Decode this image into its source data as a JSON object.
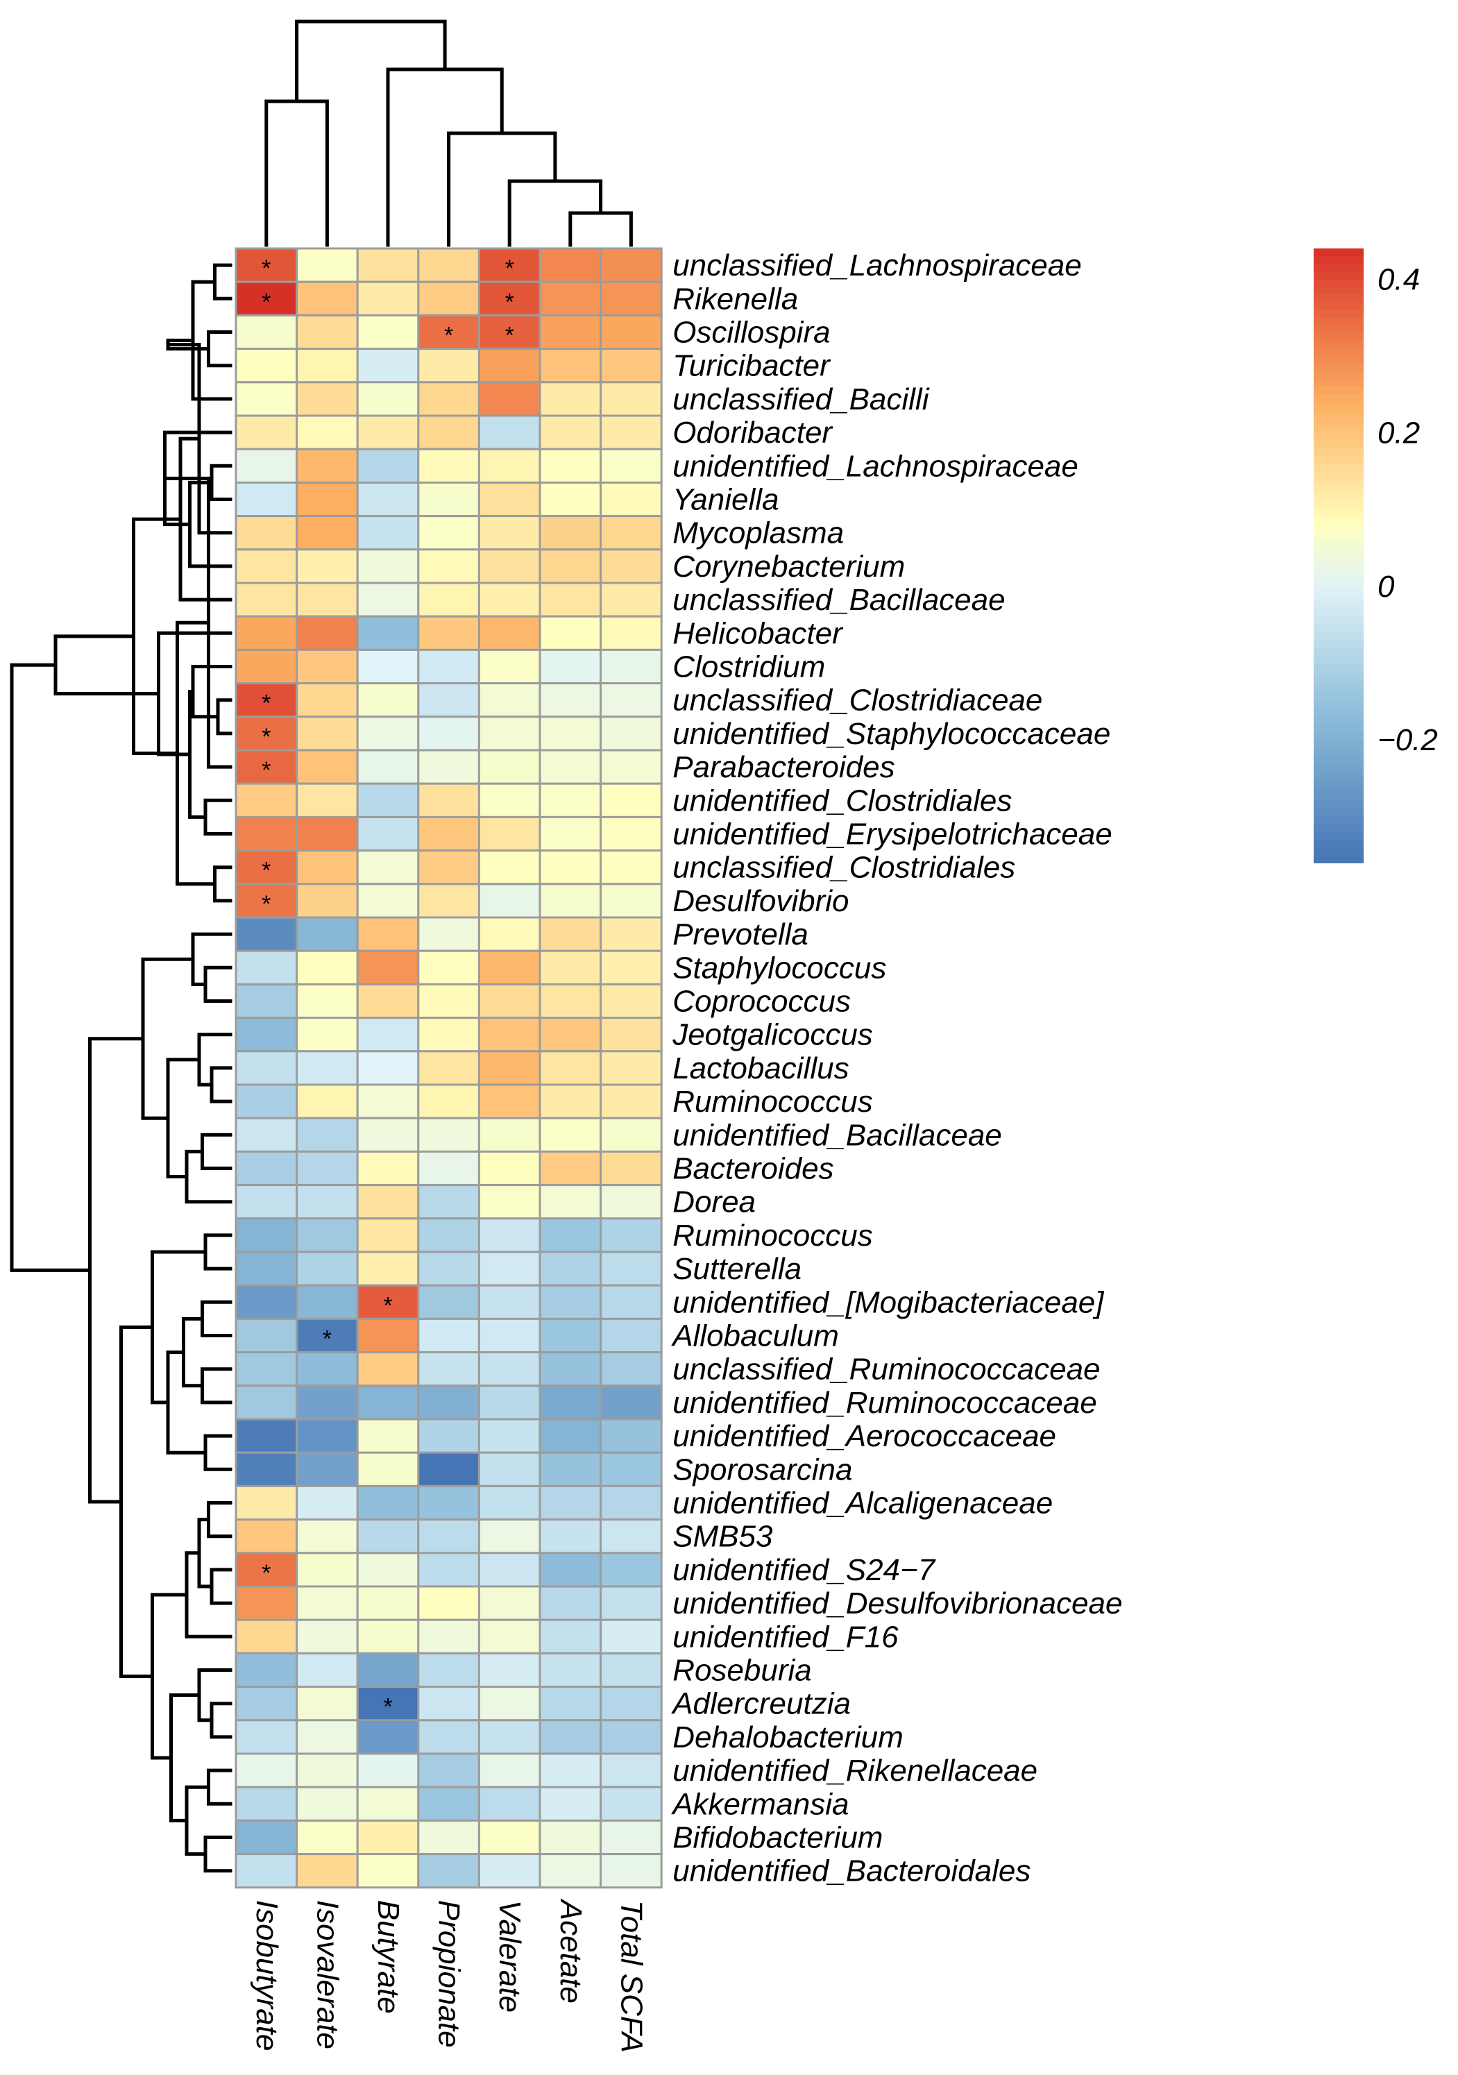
{
  "chart_data": {
    "type": "heatmap",
    "title": "",
    "columns": [
      "Isobutyrate",
      "Isovalerate",
      "Butyrate",
      "Propionate",
      "Valerate",
      "Acetate",
      "Total SCFA"
    ],
    "rows": [
      "unclassified_Lachnospiraceae",
      "Rikenella",
      "Oscillospira",
      "Turicibacter",
      "unclassified_Bacilli",
      "Odoribacter",
      "unidentified_Lachnospiraceae",
      "Yaniella",
      "Mycoplasma",
      "Corynebacterium",
      "unclassified_Bacillaceae",
      "Helicobacter",
      "Clostridium",
      "unclassified_Clostridiaceae",
      "unidentified_Staphylococcaceae",
      "Parabacteroides",
      "unidentified_Clostridiales",
      "unidentified_Erysipelotrichaceae",
      "unclassified_Clostridiales",
      "Desulfovibrio",
      "Prevotella",
      "Staphylococcus",
      "Coprococcus",
      "Jeotgalicoccus",
      "Lactobacillus",
      "Ruminococcus",
      "unidentified_Bacillaceae",
      "Bacteroides",
      "Dorea",
      "Ruminococcus",
      "Sutterella",
      "unidentified_[Mogibacteriaceae]",
      "Allobaculum",
      "unclassified_Ruminococcaceae",
      "unidentified_Ruminococcaceae",
      "unidentified_Aerococcaceae",
      "Sporosarcina",
      "unidentified_Alcaligenaceae",
      "SMB53",
      "unidentified_S24−7",
      "unidentified_Desulfovibrionaceae",
      "unidentified_F16",
      "Roseburia",
      "Adlercreutzia",
      "Dehalobacterium",
      "unidentified_Rikenellaceae",
      "Akkermansia",
      "Bifidobacterium",
      "unidentified_Bacteroidales"
    ],
    "values": [
      [
        0.38,
        0.07,
        0.14,
        0.16,
        0.38,
        0.3,
        0.29
      ],
      [
        0.44,
        0.2,
        0.12,
        0.18,
        0.38,
        0.28,
        0.28
      ],
      [
        0.06,
        0.15,
        0.07,
        0.34,
        0.36,
        0.26,
        0.25
      ],
      [
        0.08,
        0.1,
        -0.02,
        0.12,
        0.26,
        0.2,
        0.19
      ],
      [
        0.07,
        0.15,
        0.06,
        0.16,
        0.3,
        0.12,
        0.12
      ],
      [
        0.12,
        0.09,
        0.12,
        0.16,
        -0.06,
        0.12,
        0.12
      ],
      [
        0.02,
        0.22,
        -0.09,
        0.09,
        0.1,
        0.08,
        0.07
      ],
      [
        -0.03,
        0.24,
        -0.04,
        0.06,
        0.14,
        0.08,
        0.09
      ],
      [
        0.15,
        0.24,
        -0.05,
        0.07,
        0.12,
        0.17,
        0.16
      ],
      [
        0.13,
        0.11,
        0.04,
        0.09,
        0.14,
        0.16,
        0.15
      ],
      [
        0.13,
        0.13,
        0.03,
        0.1,
        0.11,
        0.13,
        0.12
      ],
      [
        0.25,
        0.31,
        -0.16,
        0.19,
        0.22,
        0.08,
        0.09
      ],
      [
        0.25,
        0.19,
        0.0,
        -0.03,
        0.07,
        0.01,
        0.02
      ],
      [
        0.39,
        0.16,
        0.06,
        -0.04,
        0.05,
        0.03,
        0.03
      ],
      [
        0.34,
        0.15,
        0.03,
        0.01,
        0.05,
        0.05,
        0.04
      ],
      [
        0.35,
        0.2,
        0.02,
        0.04,
        0.06,
        0.05,
        0.05
      ],
      [
        0.18,
        0.13,
        -0.08,
        0.14,
        0.07,
        0.07,
        0.08
      ],
      [
        0.31,
        0.31,
        -0.05,
        0.19,
        0.13,
        0.07,
        0.08
      ],
      [
        0.34,
        0.2,
        0.05,
        0.18,
        0.08,
        0.08,
        0.08
      ],
      [
        0.33,
        0.17,
        0.05,
        0.13,
        0.02,
        0.06,
        0.06
      ],
      [
        -0.3,
        -0.18,
        0.2,
        0.04,
        0.09,
        0.15,
        0.12
      ],
      [
        -0.06,
        0.08,
        0.28,
        0.08,
        0.22,
        0.12,
        0.11
      ],
      [
        -0.12,
        0.07,
        0.15,
        0.09,
        0.15,
        0.13,
        0.12
      ],
      [
        -0.17,
        0.07,
        -0.03,
        0.09,
        0.2,
        0.19,
        0.14
      ],
      [
        -0.06,
        -0.03,
        0.0,
        0.13,
        0.22,
        0.13,
        0.12
      ],
      [
        -0.11,
        0.1,
        0.05,
        0.1,
        0.2,
        0.12,
        0.12
      ],
      [
        -0.04,
        -0.09,
        0.04,
        0.04,
        0.06,
        0.07,
        0.06
      ],
      [
        -0.11,
        -0.09,
        0.09,
        0.02,
        0.08,
        0.18,
        0.15
      ],
      [
        -0.06,
        -0.06,
        0.14,
        -0.08,
        0.07,
        0.05,
        0.04
      ],
      [
        -0.19,
        -0.13,
        0.13,
        -0.1,
        -0.04,
        -0.14,
        -0.1
      ],
      [
        -0.19,
        -0.1,
        0.11,
        -0.08,
        -0.03,
        -0.1,
        -0.07
      ],
      [
        -0.26,
        -0.18,
        0.37,
        -0.13,
        -0.05,
        -0.12,
        -0.08
      ],
      [
        -0.13,
        -0.34,
        0.28,
        -0.03,
        -0.03,
        -0.14,
        -0.09
      ],
      [
        -0.13,
        -0.17,
        0.18,
        -0.05,
        -0.05,
        -0.15,
        -0.12
      ],
      [
        -0.13,
        -0.24,
        -0.19,
        -0.2,
        -0.08,
        -0.22,
        -0.24
      ],
      [
        -0.34,
        -0.28,
        0.06,
        -0.1,
        -0.05,
        -0.19,
        -0.15
      ],
      [
        -0.33,
        -0.24,
        0.06,
        -0.36,
        -0.06,
        -0.15,
        -0.14
      ],
      [
        0.12,
        -0.02,
        -0.16,
        -0.15,
        -0.06,
        -0.09,
        -0.09
      ],
      [
        0.19,
        0.05,
        -0.08,
        -0.07,
        0.03,
        -0.05,
        -0.04
      ],
      [
        0.33,
        0.06,
        0.04,
        -0.07,
        -0.04,
        -0.17,
        -0.14
      ],
      [
        0.28,
        0.05,
        0.06,
        0.08,
        0.05,
        -0.08,
        -0.06
      ],
      [
        0.16,
        0.04,
        0.06,
        0.04,
        0.05,
        -0.06,
        -0.02
      ],
      [
        -0.16,
        -0.03,
        -0.23,
        -0.07,
        -0.02,
        -0.05,
        -0.06
      ],
      [
        -0.12,
        0.05,
        -0.36,
        -0.04,
        0.03,
        -0.08,
        -0.09
      ],
      [
        -0.06,
        0.03,
        -0.26,
        -0.07,
        -0.05,
        -0.12,
        -0.11
      ],
      [
        0.02,
        0.04,
        0.01,
        -0.12,
        0.02,
        -0.02,
        -0.04
      ],
      [
        -0.08,
        0.04,
        0.05,
        -0.14,
        -0.07,
        -0.02,
        -0.05
      ],
      [
        -0.19,
        0.07,
        0.11,
        0.04,
        0.07,
        0.04,
        0.02
      ],
      [
        -0.06,
        0.16,
        0.07,
        -0.12,
        -0.02,
        0.03,
        0.02
      ]
    ],
    "significant": [
      [
        0,
        0
      ],
      [
        0,
        4
      ],
      [
        1,
        0
      ],
      [
        1,
        4
      ],
      [
        2,
        3
      ],
      [
        2,
        4
      ],
      [
        13,
        0
      ],
      [
        14,
        0
      ],
      [
        15,
        0
      ],
      [
        18,
        0
      ],
      [
        19,
        0
      ],
      [
        31,
        2
      ],
      [
        32,
        1
      ],
      [
        39,
        0
      ],
      [
        43,
        2
      ]
    ],
    "significance_marker": "*",
    "colorbar": {
      "range": [
        -0.36,
        0.44
      ],
      "ticks": [
        0.4,
        0.2,
        0,
        -0.2
      ],
      "tick_labels": [
        "0.4",
        "0.2",
        "0",
        "−0.2"
      ]
    },
    "col_dendrogram": {
      "order": [
        0,
        1,
        2,
        3,
        4,
        5,
        6
      ],
      "merges": [
        [
          5,
          6,
          1
        ],
        [
          4,
          7,
          2
        ],
        [
          3,
          8,
          3.5
        ],
        [
          2,
          9,
          5.5
        ],
        [
          0,
          1,
          4.5
        ],
        [
          11,
          10,
          7
        ]
      ]
    },
    "row_dendrogram": {
      "merges": [
        [
          0,
          1,
          0.5
        ],
        [
          2,
          3,
          0.7
        ],
        [
          49,
          4,
          1.2
        ],
        [
          50,
          51,
          2.0
        ],
        [
          6,
          7,
          0.6
        ],
        [
          52,
          8,
          1.0
        ],
        [
          53,
          9,
          1.3
        ],
        [
          54,
          10,
          1.6
        ],
        [
          5,
          55,
          2.1
        ],
        [
          13,
          14,
          0.4
        ],
        [
          57,
          15,
          0.7
        ],
        [
          58,
          12,
          1.2
        ],
        [
          16,
          17,
          0.8
        ],
        [
          18,
          19,
          0.5
        ],
        [
          60,
          61,
          1.3
        ],
        [
          59,
          62,
          1.7
        ],
        [
          11,
          63,
          2.3
        ],
        [
          56,
          64,
          3.1
        ],
        [
          65,
          66,
          5.6
        ],
        [
          21,
          22,
          0.8
        ],
        [
          20,
          68,
          1.2
        ],
        [
          24,
          25,
          0.6
        ],
        [
          23,
          70,
          1.0
        ],
        [
          26,
          27,
          0.9
        ],
        [
          28,
          72,
          1.4
        ],
        [
          71,
          73,
          2.0
        ],
        [
          69,
          74,
          2.8
        ],
        [
          29,
          30,
          0.8
        ],
        [
          31,
          32,
          0.9
        ],
        [
          33,
          34,
          0.9
        ],
        [
          77,
          78,
          1.5
        ],
        [
          35,
          36,
          0.8
        ],
        [
          79,
          80,
          2.0
        ],
        [
          76,
          81,
          2.5
        ],
        [
          37,
          38,
          0.7
        ],
        [
          39,
          40,
          0.6
        ],
        [
          83,
          84,
          1.0
        ],
        [
          41,
          85,
          1.4
        ],
        [
          43,
          44,
          0.6
        ],
        [
          42,
          87,
          1.0
        ],
        [
          45,
          46,
          0.7
        ],
        [
          47,
          48,
          0.8
        ],
        [
          89,
          90,
          1.4
        ],
        [
          88,
          91,
          1.9
        ],
        [
          86,
          92,
          2.5
        ],
        [
          82,
          93,
          3.5
        ],
        [
          75,
          94,
          4.5
        ],
        [
          67,
          95,
          7
        ]
      ]
    }
  }
}
